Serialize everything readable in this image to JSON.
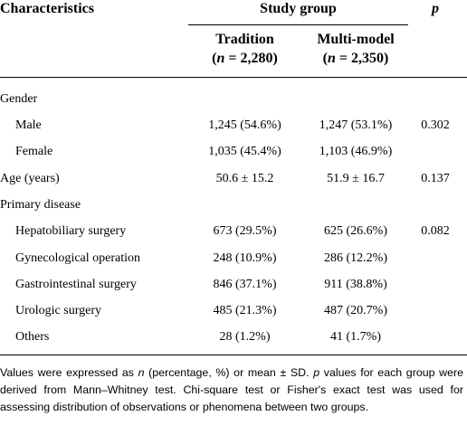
{
  "header": {
    "characteristics": "Characteristics",
    "study_group": "Study group",
    "p": "p",
    "tradition": "Tradition",
    "tradition_n_italic": "n",
    "tradition_n_value": " = 2,280)",
    "multimodel": "Multi-model",
    "multimodel_n_italic": "n",
    "multimodel_n_value": " = 2,350)",
    "open_paren": "("
  },
  "rows": [
    {
      "label": "Gender",
      "indent": false,
      "tradition": "",
      "multimodel": "",
      "p": ""
    },
    {
      "label": "Male",
      "indent": true,
      "tradition": "1,245 (54.6%)",
      "multimodel": "1,247 (53.1%)",
      "p": "0.302"
    },
    {
      "label": "Female",
      "indent": true,
      "tradition": "1,035 (45.4%)",
      "multimodel": "1,103 (46.9%)",
      "p": ""
    },
    {
      "label": "Age (years)",
      "indent": false,
      "tradition": "50.6 ± 15.2",
      "multimodel": "51.9 ± 16.7",
      "p": "0.137"
    },
    {
      "label": "Primary disease",
      "indent": false,
      "tradition": "",
      "multimodel": "",
      "p": ""
    },
    {
      "label": "Hepatobiliary surgery",
      "indent": true,
      "tradition": "673 (29.5%)",
      "multimodel": "625 (26.6%)",
      "p": "0.082"
    },
    {
      "label": "Gynecological operation",
      "indent": true,
      "tradition": "248 (10.9%)",
      "multimodel": "286 (12.2%)",
      "p": ""
    },
    {
      "label": "Gastrointestinal surgery",
      "indent": true,
      "tradition": "846 (37.1%)",
      "multimodel": "911 (38.8%)",
      "p": ""
    },
    {
      "label": "Urologic surgery",
      "indent": true,
      "tradition": "485 (21.3%)",
      "multimodel": "487 (20.7%)",
      "p": ""
    },
    {
      "label": "Others",
      "indent": true,
      "tradition": "28 (1.2%)",
      "multimodel": "41 (1.7%)",
      "p": ""
    }
  ],
  "footnote": {
    "part1": "Values were expressed as ",
    "n": "n",
    "part2": " (percentage, %) or mean ± SD. ",
    "p": "p",
    "part3": " values for each group were derived from Mann–Whitney test. Chi-square test or Fisher's exact test was used for assessing distribution of observations or phenomena between two groups."
  }
}
